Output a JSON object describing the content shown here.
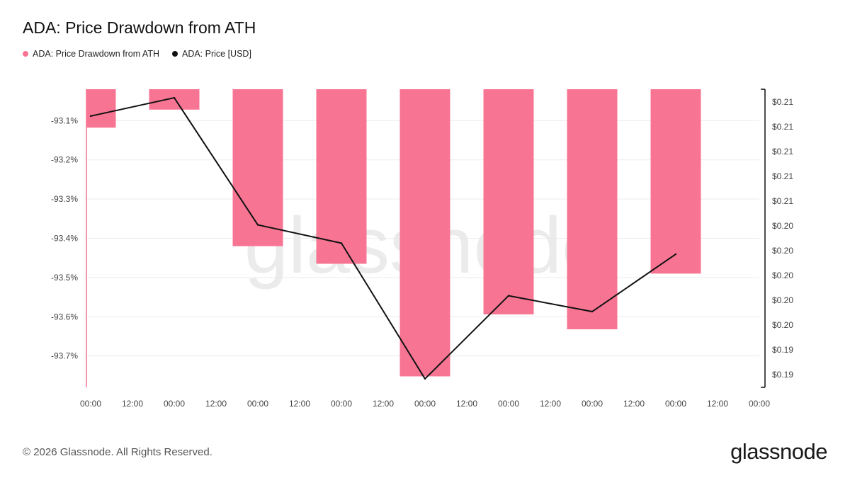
{
  "chart_data": {
    "type": "bar",
    "title": "ADA: Price Drawdown from ATH",
    "watermark": "glassnode",
    "legend_position": "top-left",
    "grid": true,
    "x_tick_labels": [
      "00:00",
      "12:00",
      "00:00",
      "12:00",
      "00:00",
      "12:00",
      "00:00",
      "12:00",
      "00:00",
      "12:00",
      "00:00",
      "12:00",
      "00:00",
      "12:00",
      "00:00",
      "12:00",
      "00:00"
    ],
    "left_axis": {
      "ticks": [
        -93.1,
        -93.2,
        -93.3,
        -93.4,
        -93.5,
        -93.6,
        -93.7
      ],
      "tick_labels": [
        "-93.1%",
        "-93.2%",
        "-93.3%",
        "-93.4%",
        "-93.5%",
        "-93.6%",
        "-93.7%"
      ],
      "ylim": [
        -93.78,
        -93.02
      ]
    },
    "right_axis": {
      "tick_labels": [
        "$0.21",
        "$0.21",
        "$0.21",
        "$0.21",
        "$0.21",
        "$0.20",
        "$0.20",
        "$0.20",
        "$0.20",
        "$0.20",
        "$0.19",
        "$0.19"
      ],
      "ylim": [
        0.1888,
        0.2132
      ]
    },
    "series": [
      {
        "name": "ADA: Price Drawdown from ATH",
        "type": "bar",
        "color": "#f77593",
        "axis": "left",
        "values": [
          -93.118,
          -93.072,
          -93.42,
          -93.465,
          -93.752,
          -93.594,
          -93.632,
          -93.49
        ]
      },
      {
        "name": "ADA: Price [USD]",
        "type": "line",
        "color": "#111111",
        "axis": "right",
        "values": [
          0.211,
          0.2125,
          0.2021,
          0.2006,
          0.1895,
          0.1963,
          0.195,
          0.1997
        ]
      }
    ]
  },
  "footer": {
    "copyright": "© 2026 Glassnode. All Rights Reserved.",
    "brand": "glassnode"
  }
}
